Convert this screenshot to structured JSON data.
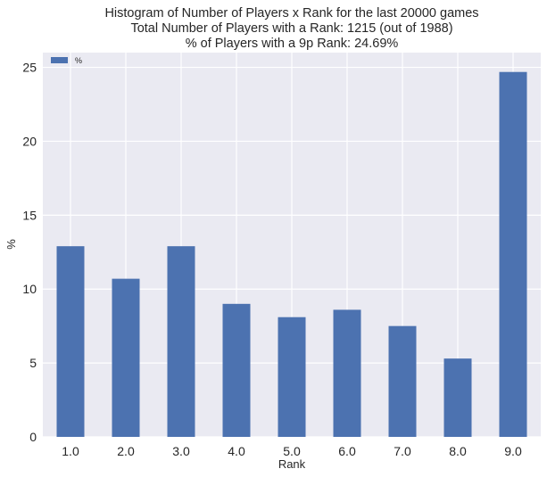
{
  "chart_data": {
    "type": "bar",
    "title_lines": [
      "Histogram of Number of Players x Rank for the last 20000 games",
      "Total Number of Players with a Rank: 1215 (out of 1988)",
      "% of Players with a 9p Rank: 24.69%"
    ],
    "xlabel": "Rank",
    "ylabel": "%",
    "categories": [
      "1.0",
      "2.0",
      "3.0",
      "4.0",
      "5.0",
      "6.0",
      "7.0",
      "8.0",
      "9.0"
    ],
    "series": [
      {
        "name": "%",
        "values": [
          12.9,
          10.7,
          12.9,
          9.0,
          8.1,
          8.6,
          7.5,
          5.3,
          24.69
        ]
      }
    ],
    "yticks": [
      "0",
      "5",
      "10",
      "15",
      "20",
      "25"
    ],
    "ylim": [
      0,
      26
    ],
    "grid": true,
    "legend_position": "top-left",
    "colors": {
      "bar": "#4C72B0",
      "plot_background": "#EAEAF2",
      "grid": "#FFFFFF"
    }
  }
}
